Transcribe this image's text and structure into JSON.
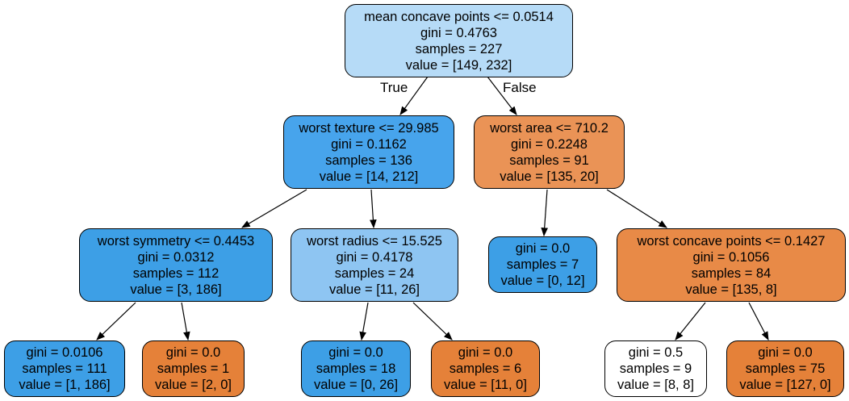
{
  "colors": {
    "light_blue": "#b6dbf7",
    "blue": "#47a4ec",
    "blue_strong": "#3d9fe6",
    "blue_mid": "#8ec5f2",
    "orange": "#ea9356",
    "orange_strong": "#e6843e",
    "orange_full": "#e58139",
    "white": "#ffffff"
  },
  "edge_labels": {
    "true_label": "True",
    "false_label": "False"
  },
  "nodes": {
    "n0": {
      "lines": [
        "mean concave points <= 0.0514",
        "gini = 0.4763",
        "samples = 227",
        "value = [149, 232]"
      ],
      "color": "#b6dbf7"
    },
    "n1": {
      "lines": [
        "worst texture <= 29.985",
        "gini = 0.1162",
        "samples = 136",
        "value = [14, 212]"
      ],
      "color": "#47a4ec"
    },
    "n2": {
      "lines": [
        "worst area <= 710.2",
        "gini = 0.2248",
        "samples = 91",
        "value = [135, 20]"
      ],
      "color": "#ea9356"
    },
    "n3": {
      "lines": [
        "worst symmetry <= 0.4453",
        "gini = 0.0312",
        "samples = 112",
        "value = [3, 186]"
      ],
      "color": "#3d9fe6"
    },
    "n4": {
      "lines": [
        "worst radius <= 15.525",
        "gini = 0.4178",
        "samples = 24",
        "value = [11, 26]"
      ],
      "color": "#8ec5f2"
    },
    "n5": {
      "lines": [
        "gini = 0.0",
        "samples = 7",
        "value = [0, 12]"
      ],
      "color": "#3d9fe6"
    },
    "n6": {
      "lines": [
        "worst concave points <= 0.1427",
        "gini = 0.1056",
        "samples = 84",
        "value = [135, 8]"
      ],
      "color": "#e88a47"
    },
    "n7": {
      "lines": [
        "gini = 0.0106",
        "samples = 111",
        "value = [1, 186]"
      ],
      "color": "#3d9fe6"
    },
    "n8": {
      "lines": [
        "gini = 0.0",
        "samples = 1",
        "value = [2, 0]"
      ],
      "color": "#e58139"
    },
    "n9": {
      "lines": [
        "gini = 0.0",
        "samples = 18",
        "value = [0, 26]"
      ],
      "color": "#3d9fe6"
    },
    "n10": {
      "lines": [
        "gini = 0.0",
        "samples = 6",
        "value = [11, 0]"
      ],
      "color": "#e58139"
    },
    "n11": {
      "lines": [
        "gini = 0.5",
        "samples = 9",
        "value = [8, 8]"
      ],
      "color": "#ffffff"
    },
    "n12": {
      "lines": [
        "gini = 0.0",
        "samples = 75",
        "value = [127, 0]"
      ],
      "color": "#e58139"
    }
  }
}
